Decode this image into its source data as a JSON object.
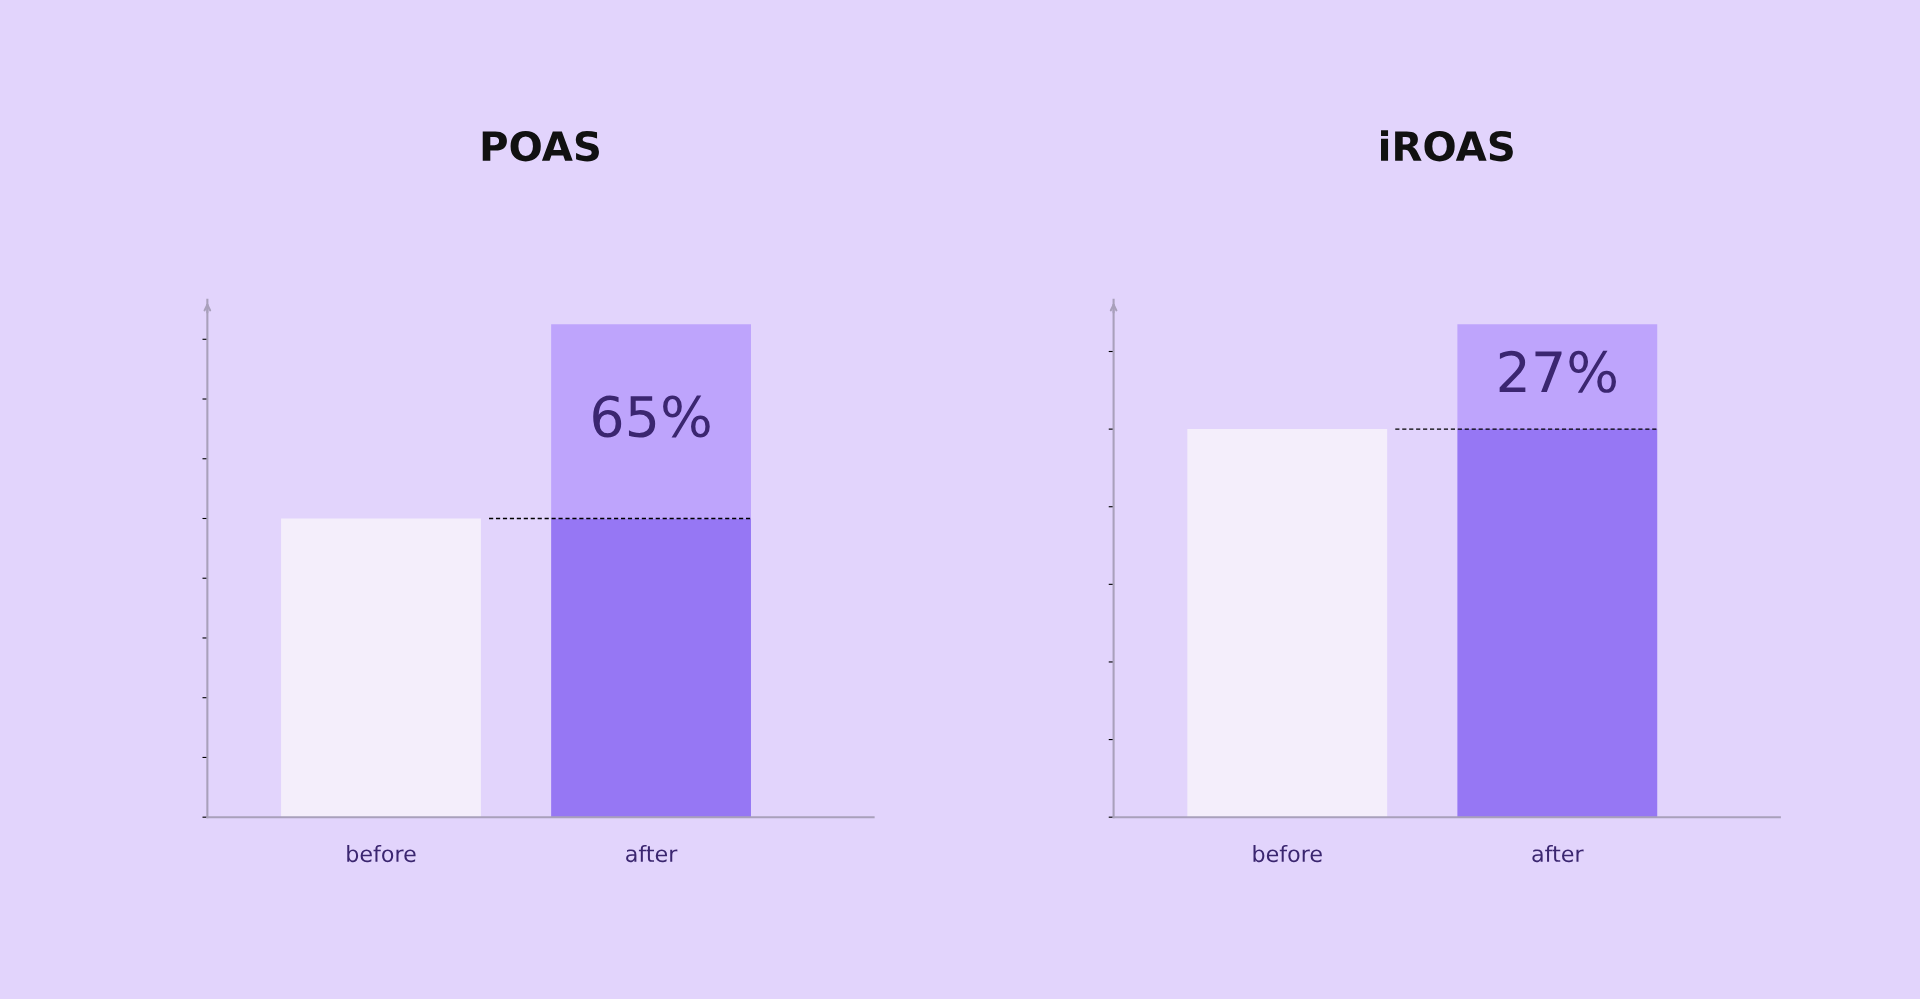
{
  "chart_data": [
    {
      "type": "bar",
      "title": "POAS",
      "stacked": true,
      "categories": [
        "before",
        "after"
      ],
      "tick_labels": "x",
      "grid": false,
      "legend": false,
      "series": [
        {
          "colors": [
            "#f4eefb",
            "#9677f4"
          ],
          "values": [
            100,
            100
          ]
        },
        {
          "color": "#bea4fc",
          "values": [
            null,
            65
          ],
          "value_labels": [
            null,
            "65%"
          ]
        }
      ],
      "ref_lines": [
        {
          "axis": "y",
          "value": 100,
          "color": "#000000",
          "line_style": "dashed"
        }
      ]
    },
    {
      "type": "bar",
      "title": "iROAS",
      "stacked": true,
      "categories": [
        "before",
        "after"
      ],
      "tick_labels": "x",
      "grid": false,
      "legend": false,
      "series": [
        {
          "colors": [
            "#f4eefb",
            "#9677f4"
          ],
          "values": [
            100,
            100
          ]
        },
        {
          "color": "#bea4fc",
          "values": [
            null,
            27
          ],
          "value_labels": [
            null,
            "27%"
          ]
        }
      ],
      "ref_lines": [
        {
          "axis": "y",
          "value": 100,
          "color": "#000000",
          "line_style": "dashed"
        }
      ]
    }
  ]
}
